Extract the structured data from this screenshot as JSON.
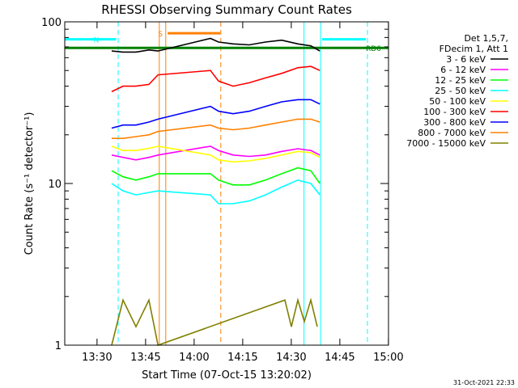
{
  "chart_data": {
    "type": "line",
    "title": "RHESSI Observing Summary Count Rates",
    "xlabel": "Start Time (07-Oct-15 13:20:02)",
    "ylabel": "Count Rate (s⁻¹ detector⁻¹)",
    "x_unit": "minutes after 13:20:02",
    "xlim": [
      0,
      100
    ],
    "ylim": [
      1,
      100
    ],
    "yscale": "log",
    "x_ticks": [
      {
        "value": 9.97,
        "label": "13:30"
      },
      {
        "value": 24.97,
        "label": "13:45"
      },
      {
        "value": 39.97,
        "label": "14:00"
      },
      {
        "value": 54.97,
        "label": "14:15"
      },
      {
        "value": 69.97,
        "label": "14:30"
      },
      {
        "value": 84.97,
        "label": "14:45"
      },
      {
        "value": 99.97,
        "label": "15:00"
      }
    ],
    "y_ticks": [
      {
        "value": 1,
        "label": "1"
      },
      {
        "value": 10,
        "label": "10"
      },
      {
        "value": 100,
        "label": "100"
      }
    ],
    "legend_title": [
      "Det 1,5,7,",
      "FDecim 1, Att 1"
    ],
    "legend_position": "right",
    "series": [
      {
        "name": "3 - 6 keV",
        "color": "#000000",
        "x": [
          14.5,
          18,
          22,
          26,
          28.8,
          45,
          47.5,
          52,
          57,
          62,
          67,
          72,
          76,
          78.8
        ],
        "values": [
          66,
          65,
          65,
          67,
          66,
          79,
          75,
          73,
          72,
          75,
          77,
          73,
          71,
          66
        ]
      },
      {
        "name": "6 - 12 keV",
        "color": "#ff00ff",
        "x": [
          14.5,
          18,
          22,
          26,
          28.8,
          45,
          47.5,
          52,
          57,
          62,
          67,
          72,
          76,
          78.8
        ],
        "values": [
          15,
          14.5,
          14,
          14.5,
          15,
          17,
          16,
          15,
          14.7,
          15,
          15.8,
          16.4,
          16,
          15
        ]
      },
      {
        "name": "12 - 25 keV",
        "color": "#00ff00",
        "x": [
          14.5,
          18,
          22,
          26,
          28.8,
          45,
          47.5,
          52,
          57,
          62,
          67,
          72,
          76,
          78.8
        ],
        "values": [
          12,
          11,
          10.5,
          11,
          11.5,
          11.5,
          10.5,
          9.8,
          9.8,
          10.5,
          11.5,
          12.5,
          12,
          10
        ]
      },
      {
        "name": "25 - 50 keV",
        "color": "#00ffff",
        "x": [
          14.5,
          18,
          22,
          26,
          28.8,
          45,
          47.5,
          52,
          57,
          62,
          67,
          72,
          76,
          78.8
        ],
        "values": [
          10,
          9,
          8.5,
          8.8,
          9,
          8.5,
          7.5,
          7.5,
          7.8,
          8.5,
          9.5,
          10.5,
          10,
          8.5
        ]
      },
      {
        "name": "50 - 100 keV",
        "color": "#ffff00",
        "x": [
          14.5,
          18,
          22,
          26,
          28.8,
          45,
          47.5,
          52,
          57,
          62,
          67,
          72,
          76,
          78.8
        ],
        "values": [
          17,
          16,
          16,
          16.5,
          17,
          15,
          14,
          13.6,
          13.8,
          14.3,
          15,
          15.8,
          15.5,
          14.5
        ]
      },
      {
        "name": "100 - 300 keV",
        "color": "#ff0000",
        "x": [
          14.5,
          18,
          22,
          26,
          28.8,
          45,
          47.5,
          52,
          57,
          62,
          67,
          72,
          76,
          78.8
        ],
        "values": [
          37,
          40,
          40,
          41,
          47,
          50,
          43,
          40,
          42,
          45,
          48,
          52,
          53,
          50
        ]
      },
      {
        "name": "300 - 800 keV",
        "color": "#0000ff",
        "x": [
          14.5,
          18,
          22,
          26,
          28.8,
          45,
          47.5,
          52,
          57,
          62,
          67,
          72,
          76,
          78.8
        ],
        "values": [
          22,
          23,
          23,
          24,
          25,
          30,
          28,
          27,
          28,
          30,
          32,
          33,
          33,
          31
        ]
      },
      {
        "name": "800 - 7000 keV",
        "color": "#ff8000",
        "x": [
          14.5,
          18,
          22,
          26,
          28.8,
          45,
          47.5,
          52,
          57,
          62,
          67,
          72,
          76,
          78.8
        ],
        "values": [
          19,
          19,
          19.5,
          20,
          21,
          23,
          22,
          21.5,
          22,
          23,
          24,
          25,
          25,
          24
        ]
      },
      {
        "name": "7000 - 15000 keV",
        "color": "#808000",
        "x": [
          14.5,
          18,
          22,
          26,
          28.8,
          68,
          70,
          72,
          74,
          76,
          78
        ],
        "values": [
          1,
          1.9,
          1.3,
          1.9,
          1,
          1.9,
          1.3,
          1.9,
          1.4,
          1.9,
          1.3
        ]
      }
    ],
    "vertical_lines": [
      {
        "x": 16.5,
        "color": "#00ffff",
        "style": "dashed"
      },
      {
        "x": 29.2,
        "color": "#ff8000",
        "style": "solid"
      },
      {
        "x": 31.2,
        "color": "#ff8000",
        "style": "solid"
      },
      {
        "x": 48.2,
        "color": "#ff8000",
        "style": "dashed"
      },
      {
        "x": 73.9,
        "color": "#00ffff",
        "style": "solid"
      },
      {
        "x": 79.0,
        "color": "#00ffff",
        "style": "solid"
      },
      {
        "x": 93.5,
        "color": "#00ffff",
        "style": "dashed"
      }
    ],
    "flag_bars": [
      {
        "label": "N",
        "color": "#00ffff",
        "x_start": 0,
        "x_end": 15.9,
        "y": 78
      },
      {
        "label": "",
        "color": "#00ffff",
        "x_start": 79.5,
        "x_end": 93,
        "y": 78
      },
      {
        "label": "S",
        "color": "#ff8000",
        "x_start": 31.8,
        "x_end": 48,
        "y": 85
      },
      {
        "label": "RD6",
        "color": "#008000",
        "x_start": 0,
        "x_end": 100,
        "y": 69
      }
    ],
    "grid": false
  },
  "footer_timestamp": "31-Oct-2021 22:33"
}
